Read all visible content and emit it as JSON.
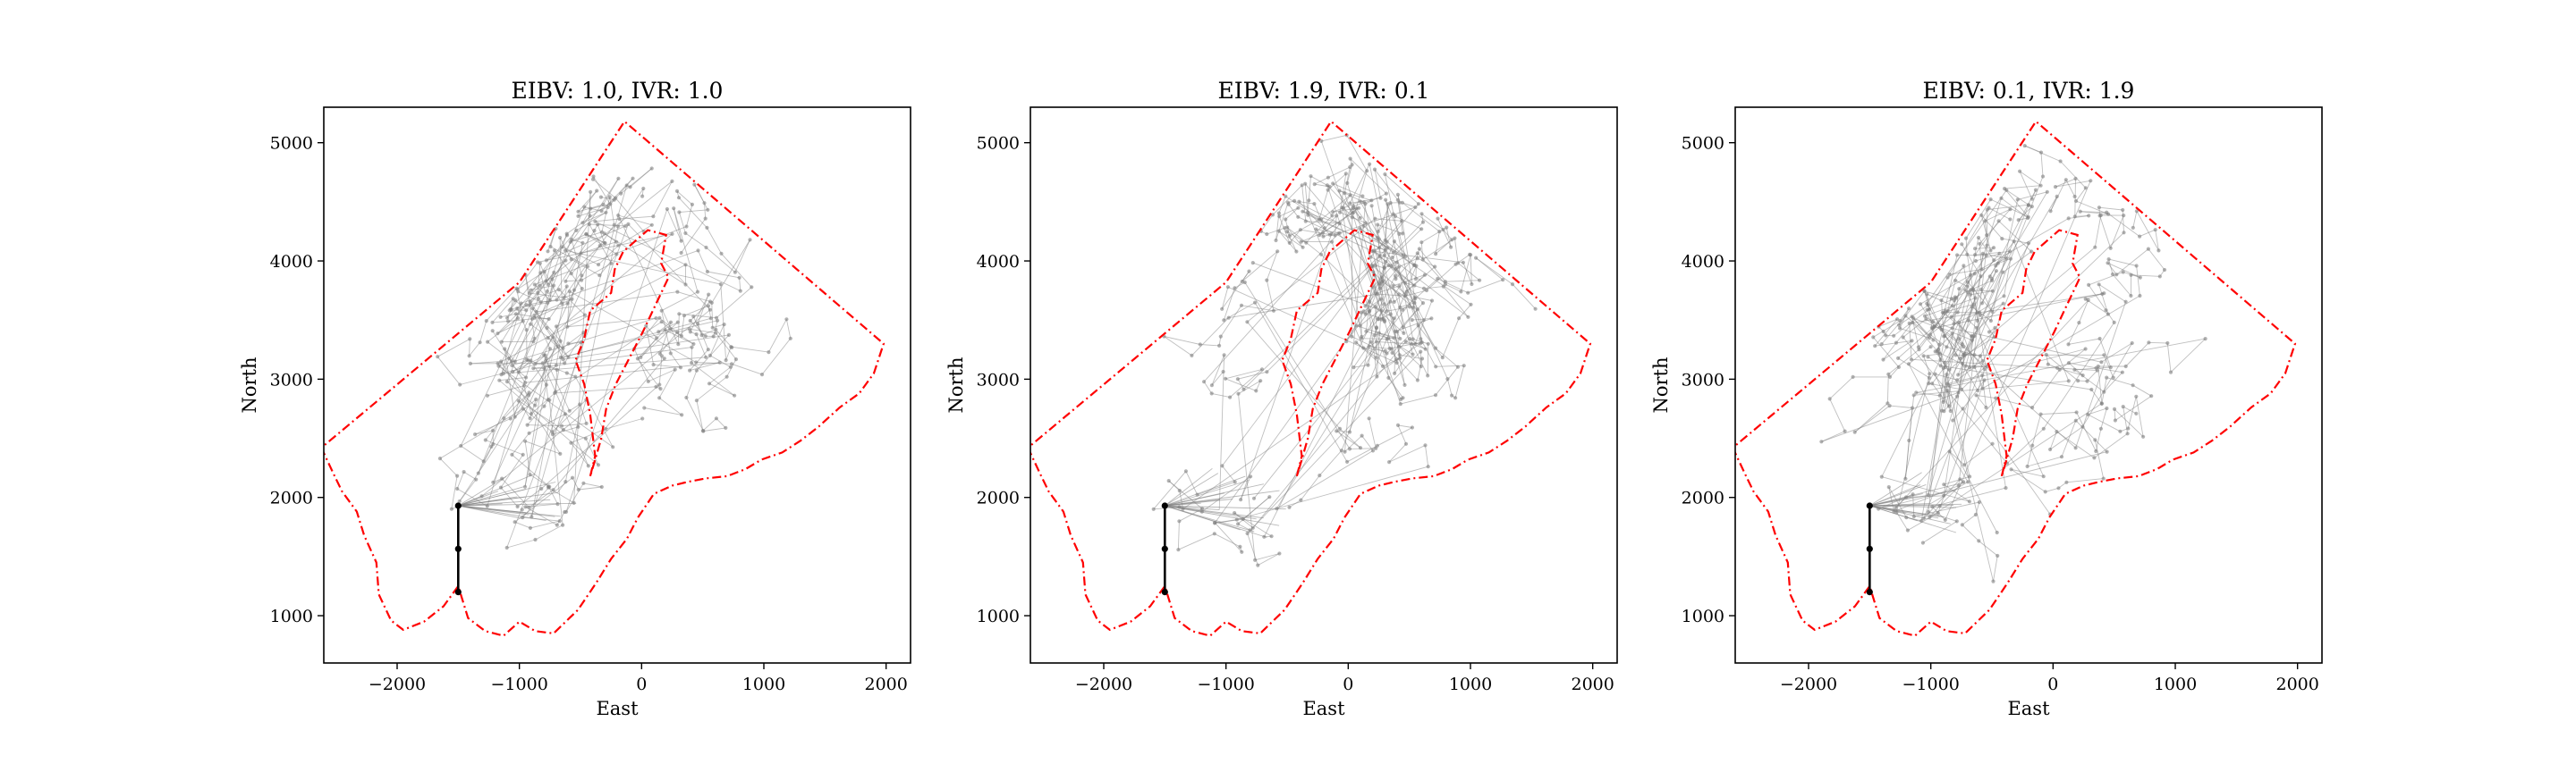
{
  "chart_data": [
    {
      "type": "line",
      "title": "EIBV: 1.0, IVR: 1.0",
      "xlabel": "East",
      "ylabel": "North",
      "xlim": [
        -2600,
        2200
      ],
      "ylim": [
        600,
        5300
      ],
      "xticks": [
        -2000,
        -1000,
        0,
        1000,
        2000
      ],
      "yticks": [
        1000,
        2000,
        3000,
        4000,
        5000
      ],
      "xtick_labels": [
        "−2000",
        "−1000",
        "0",
        "1000",
        "2000"
      ],
      "ytick_labels": [
        "1000",
        "2000",
        "3000",
        "4000",
        "5000"
      ],
      "grid": false,
      "start_point": [
        -1500,
        1200
      ],
      "hub_point": [
        -1500,
        1930
      ],
      "trajectory_color": "#808080",
      "trajectory_count": 420,
      "trajectory_focus": "C-shaped band: hub cluster near (-900, 2000) sweeping up the west and east arms to the north lobe"
    },
    {
      "type": "line",
      "title": "EIBV: 1.9, IVR: 0.1",
      "xlabel": "East",
      "ylabel": "North",
      "xlim": [
        -2600,
        2200
      ],
      "ylim": [
        600,
        5300
      ],
      "xticks": [
        -2000,
        -1000,
        0,
        1000,
        2000
      ],
      "yticks": [
        1000,
        2000,
        3000,
        4000,
        5000
      ],
      "xtick_labels": [
        "−2000",
        "−1000",
        "0",
        "1000",
        "2000"
      ],
      "ytick_labels": [
        "1000",
        "2000",
        "3000",
        "4000",
        "5000"
      ],
      "grid": false,
      "start_point": [
        -1500,
        1200
      ],
      "hub_point": [
        -1500,
        1930
      ],
      "trajectory_color": "#808080",
      "trajectory_count": 420,
      "trajectory_focus": "dense diagonal band from (-900, 2000) up to (500, 4000) along the east side of the inner island"
    },
    {
      "type": "line",
      "title": "EIBV: 0.1, IVR: 1.9",
      "xlabel": "East",
      "ylabel": "North",
      "xlim": [
        -2600,
        2200
      ],
      "ylim": [
        600,
        5300
      ],
      "xticks": [
        -2000,
        -1000,
        0,
        1000,
        2000
      ],
      "yticks": [
        1000,
        2000,
        3000,
        4000,
        5000
      ],
      "xtick_labels": [
        "−2000",
        "−1000",
        "0",
        "1000",
        "2000"
      ],
      "ytick_labels": [
        "1000",
        "2000",
        "3000",
        "4000",
        "5000"
      ],
      "grid": false,
      "start_point": [
        -1500,
        1200
      ],
      "hub_point": [
        -1500,
        1930
      ],
      "trajectory_color": "#808080",
      "trajectory_count": 420,
      "trajectory_focus": "broad spread around the inner island: west arm, north lobe and east region"
    }
  ],
  "boundary": {
    "color": "#ff0000",
    "line_style": "dash-dot",
    "outer_polygon": [
      [
        -1500,
        1250
      ],
      [
        -1620,
        1080
      ],
      [
        -1780,
        950
      ],
      [
        -1950,
        880
      ],
      [
        -2050,
        960
      ],
      [
        -2150,
        1180
      ],
      [
        -2170,
        1450
      ],
      [
        -2270,
        1680
      ],
      [
        -2330,
        1880
      ],
      [
        -2450,
        2050
      ],
      [
        -2520,
        2200
      ],
      [
        -2620,
        2420
      ],
      [
        -1000,
        3820
      ],
      [
        -140,
        5180
      ],
      [
        1980,
        3300
      ],
      [
        1900,
        3050
      ],
      [
        1780,
        2880
      ],
      [
        1620,
        2760
      ],
      [
        1450,
        2600
      ],
      [
        1300,
        2480
      ],
      [
        1150,
        2380
      ],
      [
        980,
        2320
      ],
      [
        850,
        2240
      ],
      [
        700,
        2180
      ],
      [
        520,
        2160
      ],
      [
        370,
        2130
      ],
      [
        250,
        2100
      ],
      [
        100,
        2030
      ],
      [
        -30,
        1830
      ],
      [
        -120,
        1650
      ],
      [
        -250,
        1480
      ],
      [
        -370,
        1280
      ],
      [
        -520,
        1050
      ],
      [
        -720,
        850
      ],
      [
        -870,
        870
      ],
      [
        -1000,
        950
      ],
      [
        -1130,
        830
      ],
      [
        -1280,
        870
      ],
      [
        -1420,
        980
      ],
      [
        -1500,
        1250
      ]
    ],
    "inner_polygon": [
      [
        -420,
        2180
      ],
      [
        -380,
        2350
      ],
      [
        -420,
        2700
      ],
      [
        -470,
        2960
      ],
      [
        -540,
        3160
      ],
      [
        -470,
        3340
      ],
      [
        -420,
        3580
      ],
      [
        -250,
        3730
      ],
      [
        -220,
        3930
      ],
      [
        -150,
        4080
      ],
      [
        50,
        4260
      ],
      [
        200,
        4220
      ],
      [
        160,
        3980
      ],
      [
        220,
        3860
      ],
      [
        110,
        3620
      ],
      [
        10,
        3400
      ],
      [
        -100,
        3180
      ],
      [
        -210,
        2960
      ],
      [
        -290,
        2750
      ],
      [
        -330,
        2500
      ],
      [
        -380,
        2320
      ],
      [
        -420,
        2180
      ]
    ]
  }
}
